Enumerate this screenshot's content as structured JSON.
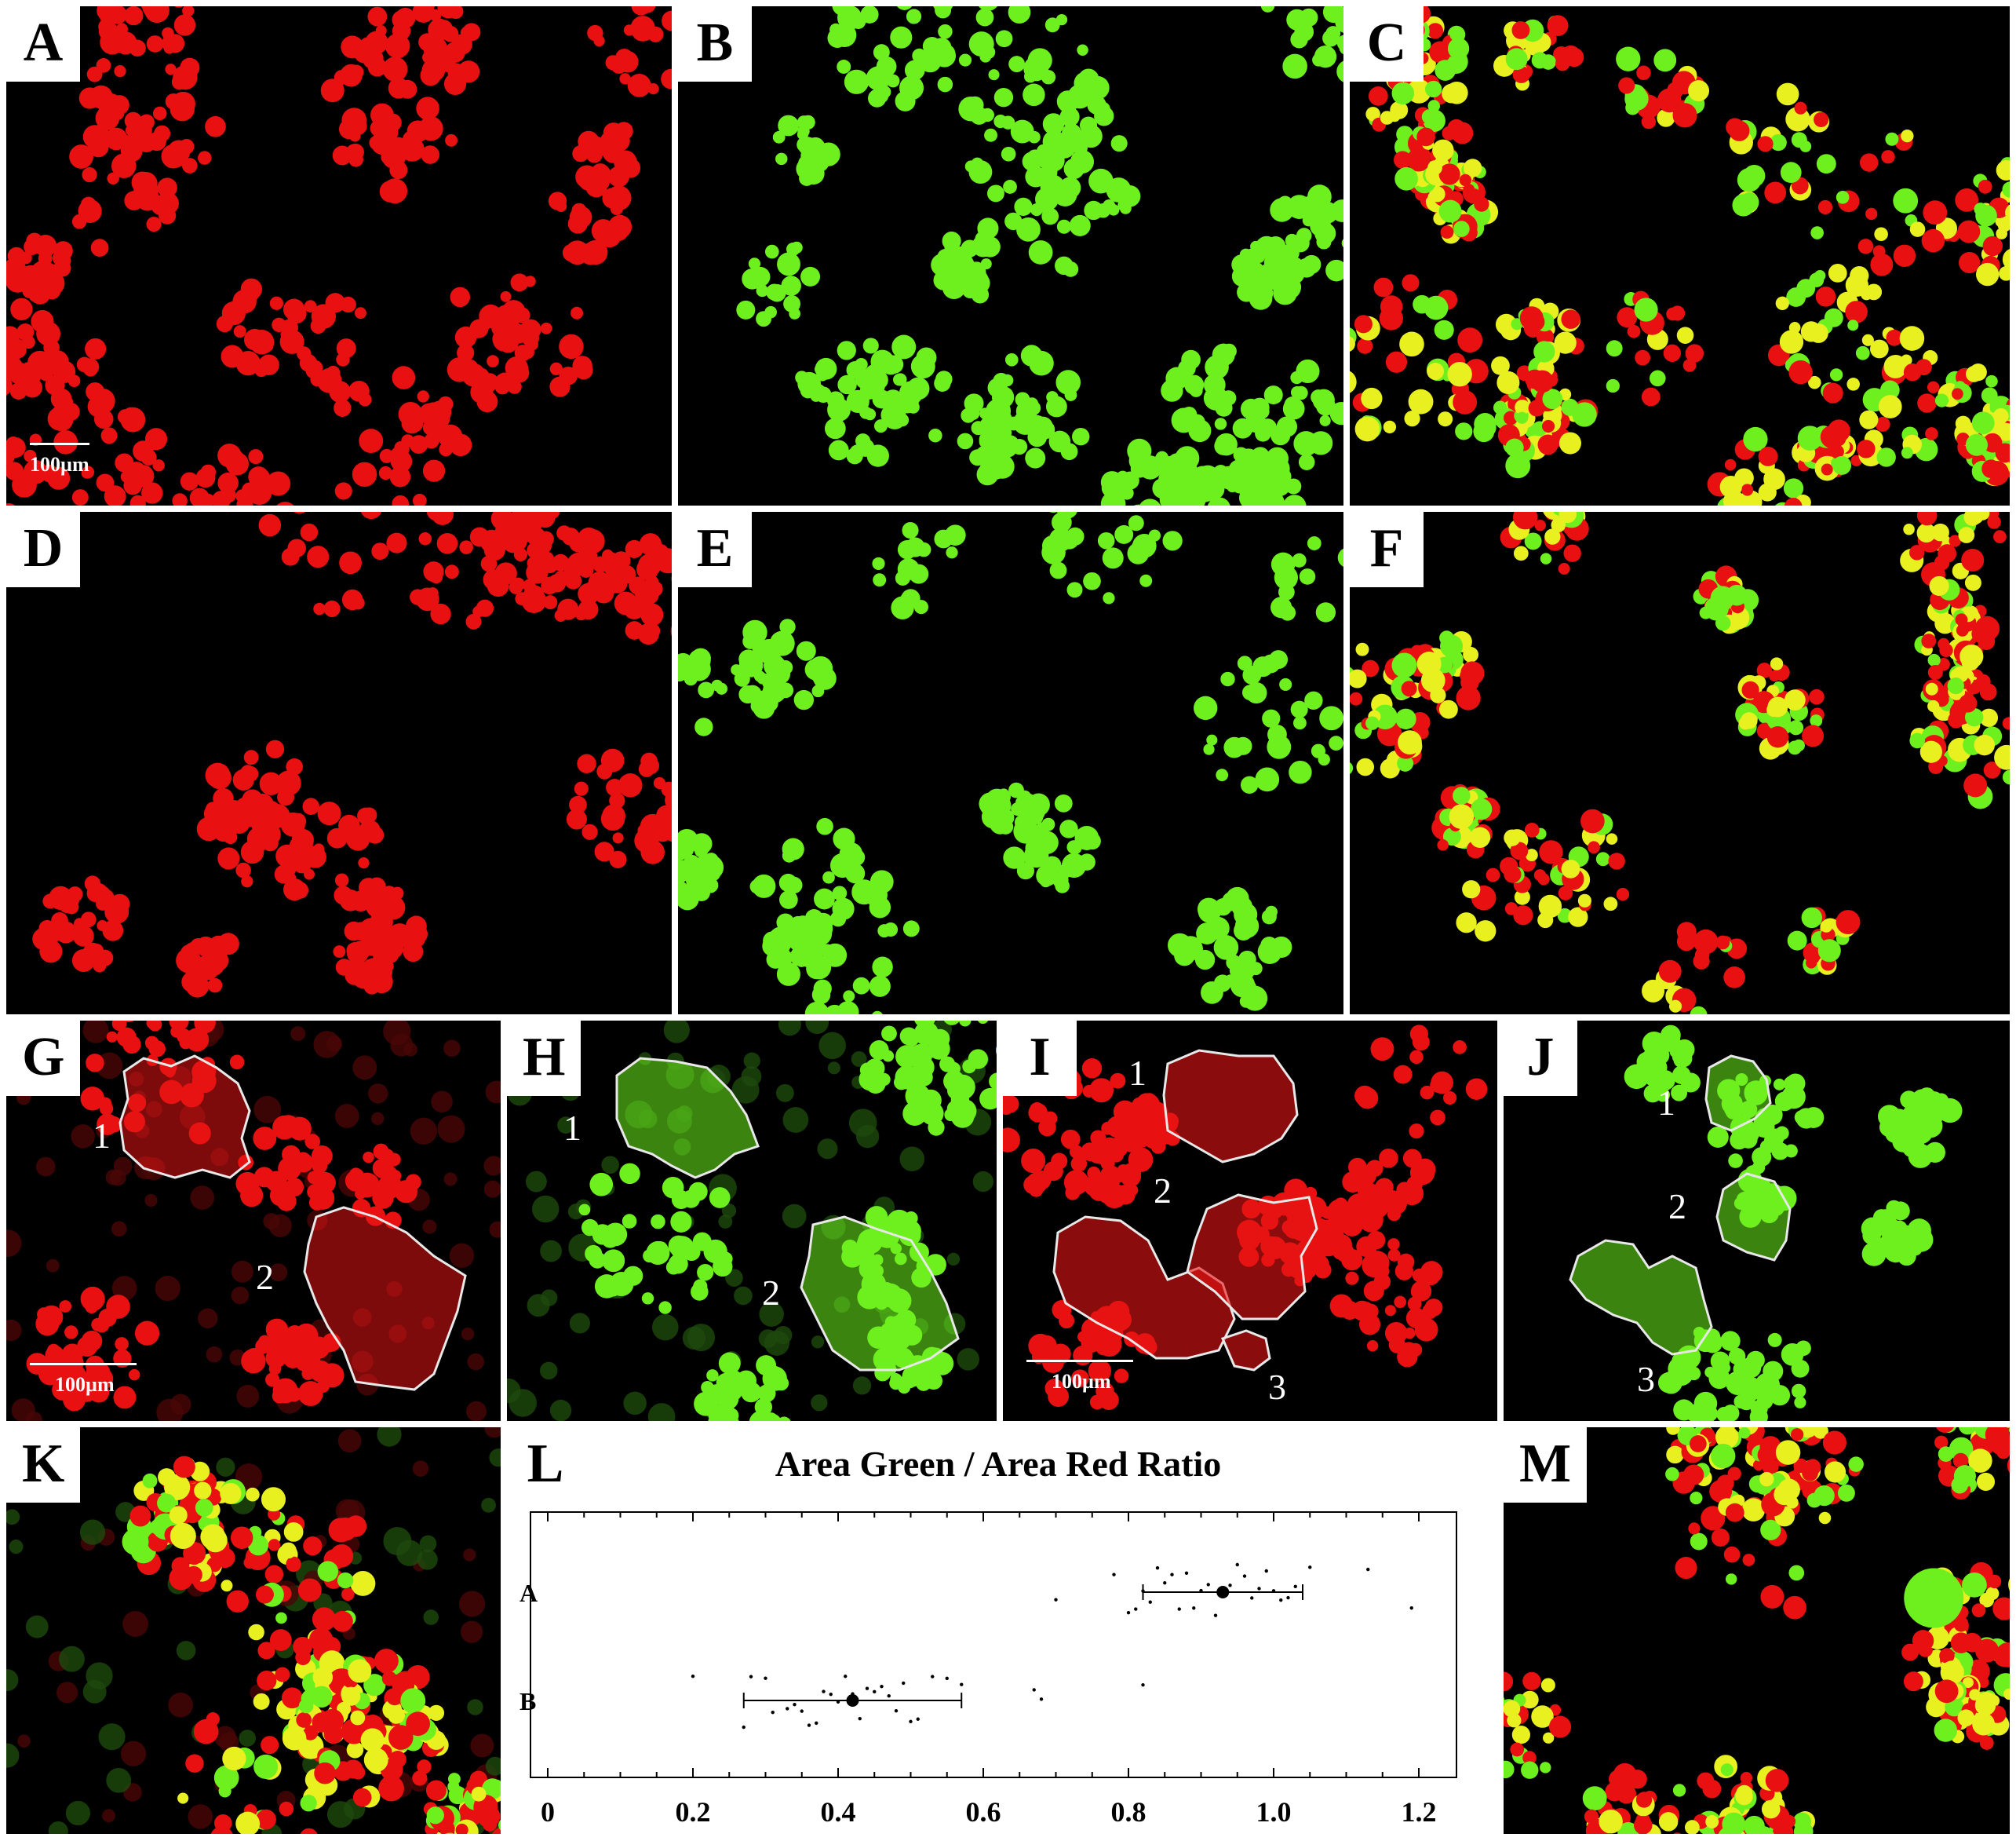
{
  "figure": {
    "panels": [
      {
        "id": "A",
        "label": "A",
        "kind": "red"
      },
      {
        "id": "B",
        "label": "B",
        "kind": "green"
      },
      {
        "id": "C",
        "label": "C",
        "kind": "merge"
      },
      {
        "id": "D",
        "label": "D",
        "kind": "red"
      },
      {
        "id": "E",
        "label": "E",
        "kind": "green"
      },
      {
        "id": "F",
        "label": "F",
        "kind": "merge"
      },
      {
        "id": "G",
        "label": "G",
        "kind": "red"
      },
      {
        "id": "H",
        "label": "H",
        "kind": "green"
      },
      {
        "id": "I",
        "label": "I",
        "kind": "red"
      },
      {
        "id": "J",
        "label": "J",
        "kind": "green"
      },
      {
        "id": "K",
        "label": "K",
        "kind": "merge"
      },
      {
        "id": "L",
        "label": "L",
        "kind": "chart"
      },
      {
        "id": "M",
        "label": "M",
        "kind": "merge"
      }
    ],
    "scale_bar_text": "100µm",
    "region_numbers": {
      "G": [
        "1",
        "2"
      ],
      "H": [
        "1",
        "2"
      ],
      "I": [
        "1",
        "2",
        "3"
      ],
      "J": [
        "1",
        "2",
        "3"
      ]
    },
    "colors": {
      "red": "#e81010",
      "green": "#6ef01e",
      "yellow": "#e8f020",
      "background": "#000000",
      "outline": "#e8e8e8"
    }
  },
  "chart_data": {
    "type": "scatter",
    "title": "Area Green / Area Red  Ratio",
    "xlabel": "",
    "ylabel": "",
    "xlim": [
      0,
      1.2
    ],
    "x_ticks": [
      "0",
      "0.2",
      "0.4",
      "0.6",
      "0.8",
      "1.0",
      "1.2"
    ],
    "categories": [
      "A",
      "B"
    ],
    "grid": false,
    "series": [
      {
        "name": "A",
        "mean": 0.93,
        "error_range": [
          0.82,
          1.04
        ],
        "points": [
          0.7,
          0.78,
          0.8,
          0.81,
          0.82,
          0.83,
          0.84,
          0.85,
          0.86,
          0.87,
          0.88,
          0.89,
          0.9,
          0.91,
          0.92,
          0.93,
          0.94,
          0.95,
          0.96,
          0.97,
          0.98,
          0.99,
          1.0,
          1.01,
          1.02,
          1.03,
          1.05,
          1.13,
          1.19
        ]
      },
      {
        "name": "B",
        "mean": 0.42,
        "error_range": [
          0.27,
          0.57
        ],
        "points": [
          0.2,
          0.27,
          0.28,
          0.3,
          0.31,
          0.33,
          0.34,
          0.35,
          0.36,
          0.37,
          0.38,
          0.39,
          0.4,
          0.41,
          0.42,
          0.43,
          0.44,
          0.45,
          0.46,
          0.47,
          0.48,
          0.49,
          0.5,
          0.51,
          0.53,
          0.55,
          0.57,
          0.67,
          0.68,
          0.82
        ]
      }
    ]
  }
}
